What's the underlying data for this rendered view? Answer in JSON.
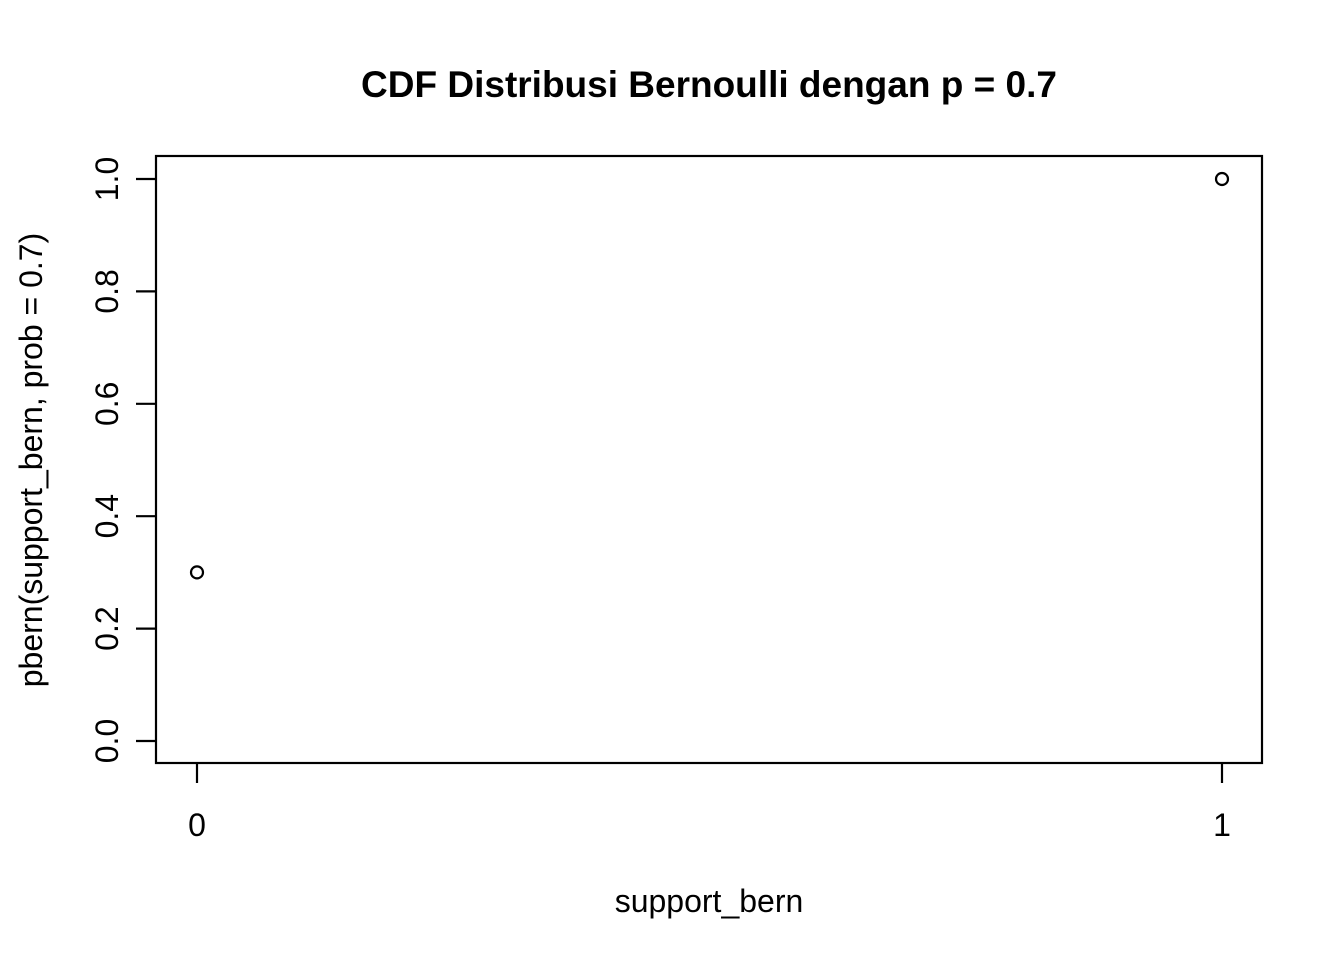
{
  "chart_data": {
    "type": "scatter",
    "title": "CDF Distribusi Bernoulli dengan p = 0.7",
    "xlabel": "support_bern",
    "ylabel": "pbern(support_bern, prob = 0.7)",
    "points": [
      {
        "x": 0,
        "y": 0.3
      },
      {
        "x": 1,
        "y": 1.0
      }
    ],
    "x_ticks": [
      {
        "value": 0,
        "label": "0"
      },
      {
        "value": 1,
        "label": "1"
      }
    ],
    "y_ticks": [
      {
        "value": 0.0,
        "label": "0.0"
      },
      {
        "value": 0.2,
        "label": "0.2"
      },
      {
        "value": 0.4,
        "label": "0.4"
      },
      {
        "value": 0.6,
        "label": "0.6"
      },
      {
        "value": 0.8,
        "label": "0.8"
      },
      {
        "value": 1.0,
        "label": "1.0"
      }
    ],
    "xlim": [
      0,
      1
    ],
    "ylim": [
      0,
      1
    ],
    "grid": false,
    "legend": null,
    "point_style": "open-circle",
    "colors": {
      "foreground": "#000000",
      "background": "#ffffff"
    }
  }
}
